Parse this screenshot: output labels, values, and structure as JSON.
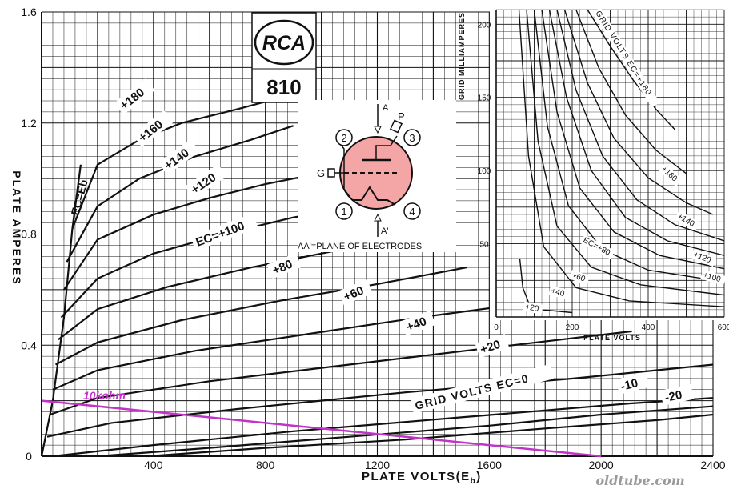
{
  "chart_data": [
    {
      "type": "line",
      "title": "",
      "xlabel": "PLATE VOLTS(E",
      "xlabel_sub": "b",
      "xlabel_close": ")",
      "ylabel": "PLATE AMPERES",
      "xlim": [
        0,
        2400
      ],
      "ylim": [
        0,
        1.6
      ],
      "x_ticks": [
        0,
        400,
        800,
        1200,
        1600,
        2000,
        2400
      ],
      "x_tick_labels": [
        "400",
        "800",
        "1200",
        "1600",
        "2000",
        "2400"
      ],
      "y_ticks": [
        0,
        0.4,
        0.8,
        1.2,
        1.6
      ],
      "y_tick_labels": [
        "0",
        "0.4",
        "0.8",
        "1.2",
        "1.6"
      ],
      "grid": true,
      "ec_eb_label": "EC=Eb",
      "grid_volts_label": "GRID VOLTS  EC=0",
      "series": [
        {
          "name": "+180",
          "label_text": "+180",
          "x": [
            110,
            200,
            350,
            500,
            700,
            850
          ],
          "y": [
            0.82,
            1.05,
            1.14,
            1.2,
            1.25,
            1.29
          ]
        },
        {
          "name": "+160",
          "label_text": "+160",
          "x": [
            90,
            200,
            350,
            550,
            750,
            900
          ],
          "y": [
            0.7,
            0.9,
            1.0,
            1.08,
            1.14,
            1.19
          ]
        },
        {
          "name": "+140",
          "label_text": "+140",
          "x": [
            80,
            200,
            400,
            600,
            800,
            1000
          ],
          "y": [
            0.6,
            0.78,
            0.87,
            0.93,
            0.98,
            1.02
          ]
        },
        {
          "name": "+120",
          "label_text": "+120",
          "x": [
            70,
            200,
            400,
            650,
            900,
            1130
          ],
          "y": [
            0.5,
            0.64,
            0.73,
            0.8,
            0.86,
            0.9
          ]
        },
        {
          "name": "+100",
          "label_text": "EC=+100",
          "x": [
            60,
            200,
            450,
            750,
            1050,
            1290
          ],
          "y": [
            0.42,
            0.53,
            0.61,
            0.68,
            0.74,
            0.79
          ]
        },
        {
          "name": "+80",
          "label_text": "+80",
          "x": [
            50,
            200,
            500,
            850,
            1200,
            1520
          ],
          "y": [
            0.33,
            0.41,
            0.49,
            0.56,
            0.62,
            0.68
          ]
        },
        {
          "name": "+60",
          "label_text": "+60",
          "x": [
            40,
            200,
            550,
            950,
            1350,
            1800
          ],
          "y": [
            0.24,
            0.31,
            0.38,
            0.44,
            0.5,
            0.56
          ]
        },
        {
          "name": "+40",
          "label_text": "+40",
          "x": [
            30,
            200,
            600,
            1100,
            1600,
            2110
          ],
          "y": [
            0.15,
            0.21,
            0.27,
            0.33,
            0.39,
            0.45
          ]
        },
        {
          "name": "+20",
          "label_text": "+20",
          "x": [
            20,
            250,
            700,
            1300,
            1900,
            2400
          ],
          "y": [
            0.07,
            0.12,
            0.17,
            0.23,
            0.28,
            0.33
          ]
        },
        {
          "name": "0",
          "label_text": "",
          "x": [
            40,
            400,
            900,
            1500,
            2100,
            2400
          ],
          "y": [
            0.0,
            0.04,
            0.09,
            0.14,
            0.19,
            0.21
          ]
        },
        {
          "name": "-10",
          "label_text": "-10",
          "x": [
            200,
            600,
            1100,
            1600,
            2000,
            2400
          ],
          "y": [
            0.0,
            0.03,
            0.07,
            0.11,
            0.15,
            0.18
          ]
        },
        {
          "name": "-20",
          "label_text": "-20",
          "x": [
            380,
            800,
            1300,
            1800,
            2200,
            2400
          ],
          "y": [
            0.0,
            0.03,
            0.06,
            0.1,
            0.13,
            0.15
          ]
        }
      ],
      "load_line": {
        "label": "10kohm",
        "x": [
          0,
          2000
        ],
        "y": [
          0.2,
          0.0
        ],
        "color": "#c233c8"
      }
    },
    {
      "type": "line",
      "title": "",
      "xlabel": "PLATE VOLTS",
      "ylabel": "GRID MILLIAMPERES",
      "xlim": [
        0,
        600
      ],
      "ylim": [
        0,
        210
      ],
      "x_ticks": [
        0,
        200,
        400,
        600
      ],
      "x_tick_labels": [
        "0",
        "200",
        "400",
        "600"
      ],
      "y_ticks": [
        50,
        100,
        150,
        200
      ],
      "y_tick_labels": [
        "50",
        "100",
        "150",
        "200"
      ],
      "grid": true,
      "grid_volts_label": "GRID VOLTS  EC=+180",
      "series": [
        {
          "name": "+180",
          "label_text": "",
          "x": [
            240,
            300,
            360,
            420,
            470
          ],
          "y": [
            210,
            185,
            162,
            142,
            128
          ]
        },
        {
          "name": "+160",
          "label_text": "+160",
          "x": [
            210,
            270,
            340,
            420,
            500
          ],
          "y": [
            210,
            170,
            138,
            114,
            98
          ]
        },
        {
          "name": "+140",
          "label_text": "+140",
          "x": [
            180,
            240,
            310,
            400,
            500,
            570
          ],
          "y": [
            210,
            160,
            122,
            95,
            78,
            70
          ]
        },
        {
          "name": "+120",
          "label_text": "+120",
          "x": [
            160,
            210,
            280,
            370,
            470,
            600
          ],
          "y": [
            210,
            155,
            110,
            80,
            63,
            52
          ]
        },
        {
          "name": "+100",
          "label_text": "+100",
          "x": [
            140,
            185,
            250,
            340,
            450,
            600
          ],
          "y": [
            210,
            150,
            100,
            68,
            52,
            42
          ]
        },
        {
          "name": "+80",
          "label_text": "EC=+80",
          "x": [
            120,
            160,
            220,
            310,
            430,
            600
          ],
          "y": [
            210,
            140,
            88,
            58,
            42,
            33
          ]
        },
        {
          "name": "+60",
          "label_text": "+60",
          "x": [
            100,
            135,
            190,
            280,
            400,
            600
          ],
          "y": [
            210,
            130,
            76,
            46,
            32,
            24
          ]
        },
        {
          "name": "+40",
          "label_text": "+40",
          "x": [
            80,
            110,
            160,
            250,
            380,
            600
          ],
          "y": [
            210,
            120,
            62,
            34,
            22,
            15
          ]
        },
        {
          "name": "+20",
          "label_text": "+20",
          "x": [
            60,
            85,
            125,
            210,
            350,
            600
          ],
          "y": [
            210,
            110,
            48,
            20,
            11,
            7
          ]
        },
        {
          "name": "+20b",
          "label_text": "",
          "x": [
            62,
            70,
            85,
            120,
            200
          ],
          "y": [
            40,
            20,
            10,
            5,
            3
          ]
        }
      ]
    }
  ],
  "logo": {
    "brand": "RCA",
    "model": "810"
  },
  "tube_diagram": {
    "pins": [
      "1",
      "2",
      "3",
      "4"
    ],
    "labels": {
      "A": "A",
      "A_prime": "A'",
      "P": "P",
      "G": "G"
    },
    "caption": "AA'=PLANE OF ELECTRODES",
    "fill_color": "#f4a5a5"
  },
  "watermark": "oldtube.com",
  "colors": {
    "load_line": "#c233c8",
    "grid": "#1a1a1a",
    "ink": "#111111"
  }
}
